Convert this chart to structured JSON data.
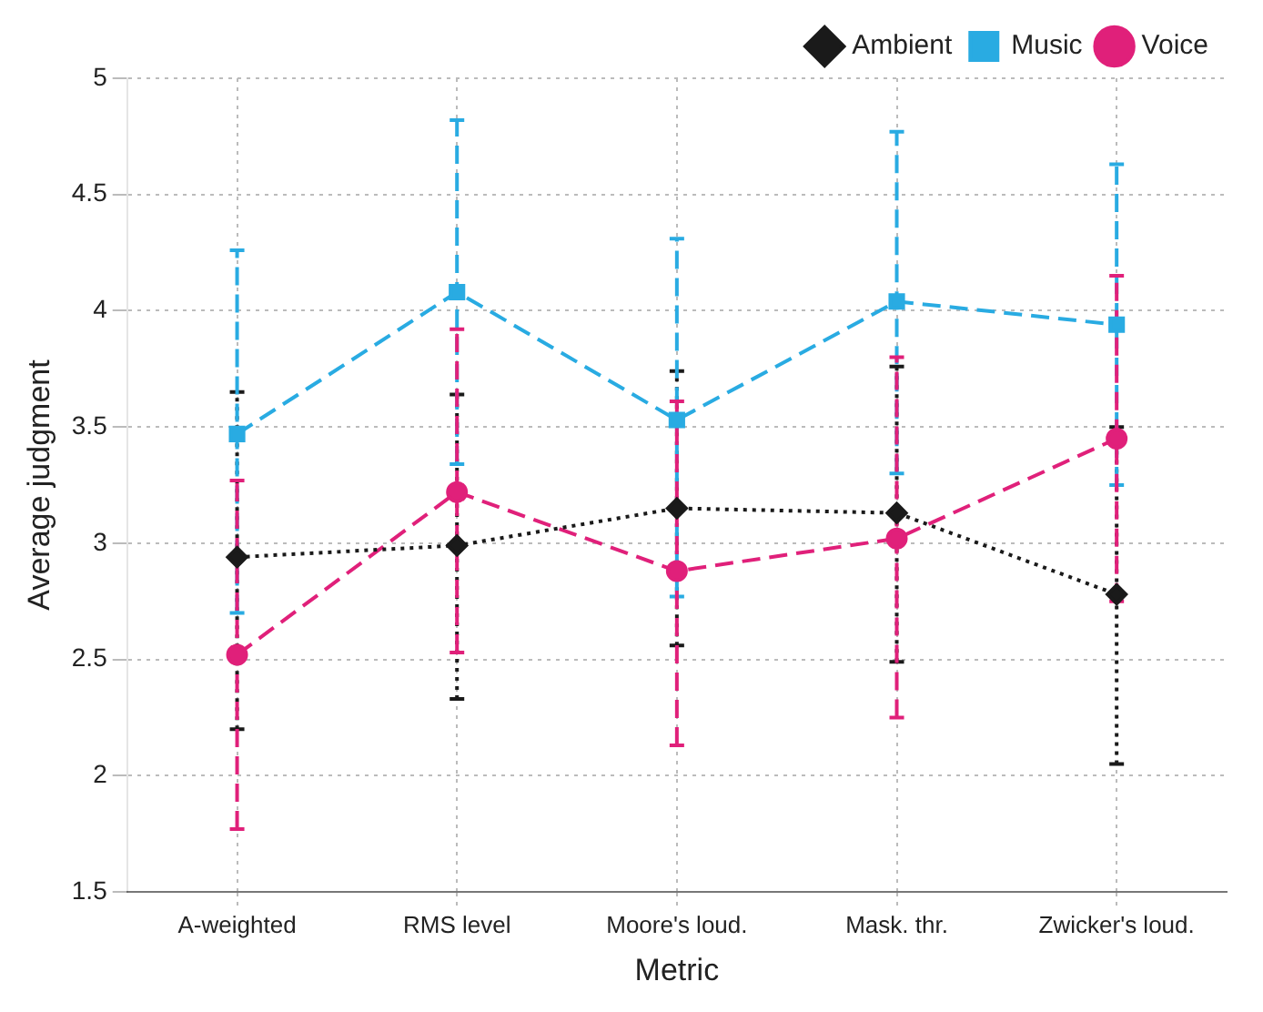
{
  "chart_data": {
    "type": "line",
    "xlabel": "Metric",
    "ylabel": "Average judgment",
    "categories": [
      "A-weighted",
      "RMS level",
      "Moore's loud.",
      "Mask. thr.",
      "Zwicker's loud."
    ],
    "ylim": [
      1.5,
      5
    ],
    "yticks": [
      1.5,
      2,
      2.5,
      3,
      3.5,
      4,
      4.5,
      5
    ],
    "grid": true,
    "legend": "top right",
    "series": [
      {
        "name": "Ambient",
        "color": "#1a1a1a",
        "marker": "diamond",
        "line_style": "dotted",
        "values": [
          2.94,
          2.99,
          3.15,
          3.13,
          2.78
        ],
        "errors": [
          [
            2.2,
            3.65
          ],
          [
            2.33,
            3.64
          ],
          [
            2.56,
            3.74
          ],
          [
            2.49,
            3.76
          ],
          [
            2.05,
            3.5
          ]
        ]
      },
      {
        "name": "Music",
        "color": "#29abe2",
        "marker": "square",
        "line_style": "dashed",
        "values": [
          3.47,
          4.08,
          3.53,
          4.04,
          3.94
        ],
        "errors": [
          [
            2.7,
            4.26
          ],
          [
            3.34,
            4.82
          ],
          [
            2.77,
            4.31
          ],
          [
            3.3,
            4.77
          ],
          [
            3.25,
            4.63
          ]
        ]
      },
      {
        "name": "Voice",
        "color": "#e0207a",
        "marker": "circle",
        "line_style": "dashed",
        "values": [
          2.52,
          3.22,
          2.88,
          3.02,
          3.45
        ],
        "errors": [
          [
            1.77,
            3.27
          ],
          [
            2.53,
            3.92
          ],
          [
            2.13,
            3.61
          ],
          [
            2.25,
            3.8
          ],
          [
            2.75,
            4.15
          ]
        ]
      }
    ]
  }
}
